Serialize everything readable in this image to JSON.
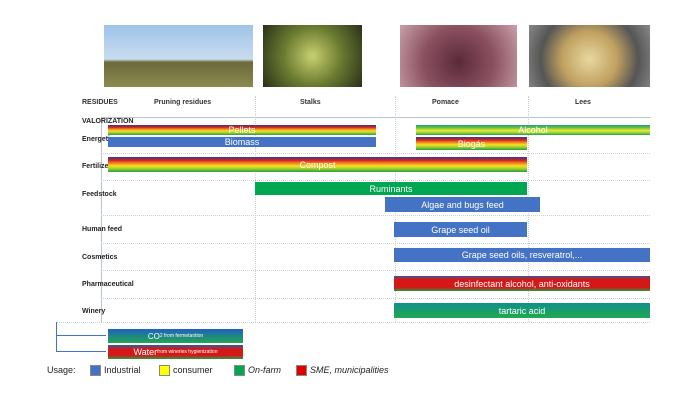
{
  "photos": [
    "pruning-residues-photo",
    "stalks-photo",
    "pomace-photo",
    "lees-photo"
  ],
  "columns": {
    "residues": "RESIDUES",
    "pruning": "Pruning residues",
    "stalks": "Stalks",
    "pomace": "Pomace",
    "lees": "Lees"
  },
  "rows": {
    "valorization": "VALORIZATION",
    "energetic": "Energetic",
    "fertilizer": "Fertilizer",
    "feedstock": "Feedstock",
    "human_feed": "Human feed",
    "cosmetics": "Cosmetics",
    "pharmaceutical": "Pharmaceutical",
    "winery": "Winery"
  },
  "bars": {
    "pellets": "Pellets",
    "alcohol": "Alcohol",
    "biomass": "Biomass",
    "biogas": "Biogás",
    "compost": "Compost",
    "ruminants": "Ruminants",
    "algae": "Algae and bugs feed",
    "grape_seed_oil": "Grape seed oil",
    "grape_seed_oils": "Grape seed oils, resveratrol,...",
    "pharma": "desinfectant alcohol, anti-oxidants",
    "tartaric": "tartaric  acid"
  },
  "byproducts": {
    "co2": "CO",
    "co2_sub": "2 from fermetantion",
    "water": "Water",
    "water_sub": " from wineries hygienization"
  },
  "legend": {
    "title": "Usage:",
    "items": [
      {
        "label": "Industrial",
        "color": "#4472c4"
      },
      {
        "label": "consumer",
        "color": "#ffff00"
      },
      {
        "label": "On-farm",
        "color": "#00a650"
      },
      {
        "label": "SME, municipalities",
        "color": "#e00000"
      }
    ]
  }
}
